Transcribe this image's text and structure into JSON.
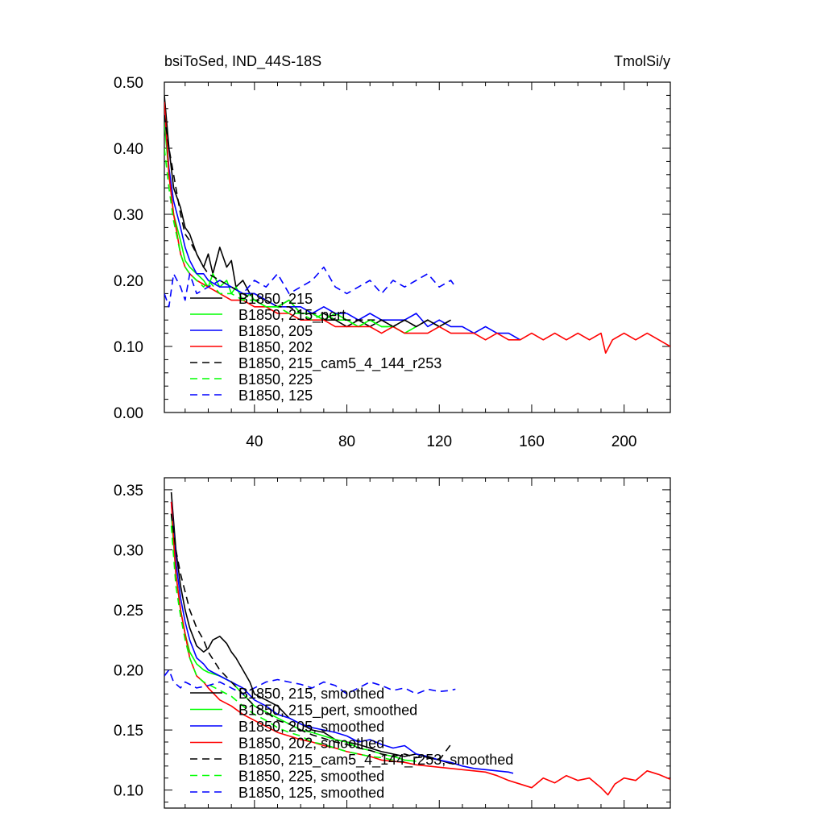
{
  "chart_data": [
    {
      "type": "line",
      "title_left": "bsiToSed, IND_44S-18S",
      "title_right": "TmolSi/y",
      "xlim": [
        1,
        220
      ],
      "ylim": [
        0,
        0.5
      ],
      "xticks": [
        40,
        80,
        120,
        160,
        200
      ],
      "yticks": [
        0,
        0.1,
        0.2,
        0.3,
        0.4,
        0.5
      ],
      "ytick_labels": [
        "0.00",
        "0.10",
        "0.20",
        "0.30",
        "0.40",
        "0.50"
      ],
      "grid": false,
      "legend_position": "lower-left",
      "series": [
        {
          "name": "B1850, 215",
          "color": "#000000",
          "dash": "solid",
          "x": [
            1,
            3,
            5,
            8,
            10,
            12,
            15,
            18,
            20,
            22,
            25,
            28,
            30,
            32,
            35,
            38,
            40,
            45,
            50,
            55,
            60,
            65,
            70,
            75,
            80,
            85,
            90,
            95,
            100,
            105,
            110,
            115,
            120,
            125
          ],
          "y": [
            0.48,
            0.4,
            0.34,
            0.31,
            0.28,
            0.27,
            0.24,
            0.22,
            0.24,
            0.21,
            0.25,
            0.22,
            0.23,
            0.19,
            0.2,
            0.18,
            0.18,
            0.17,
            0.16,
            0.17,
            0.15,
            0.15,
            0.14,
            0.14,
            0.13,
            0.14,
            0.13,
            0.14,
            0.13,
            0.14,
            0.13,
            0.14,
            0.13,
            0.14
          ]
        },
        {
          "name": "B1850, 215_pert",
          "color": "#00ff00",
          "dash": "solid",
          "x": [
            1,
            3,
            5,
            8,
            10,
            12,
            15,
            18,
            20,
            22,
            25,
            28,
            30,
            32,
            35,
            38,
            40,
            45,
            50,
            55,
            60,
            65,
            70,
            75,
            80,
            85,
            90,
            95,
            100,
            105,
            110
          ],
          "y": [
            0.44,
            0.36,
            0.3,
            0.26,
            0.23,
            0.22,
            0.21,
            0.2,
            0.19,
            0.21,
            0.19,
            0.2,
            0.18,
            0.19,
            0.17,
            0.18,
            0.17,
            0.16,
            0.16,
            0.17,
            0.15,
            0.15,
            0.14,
            0.15,
            0.14,
            0.13,
            0.14,
            0.13,
            0.13,
            0.12,
            0.13
          ]
        },
        {
          "name": "B1850, 205",
          "color": "#0000ff",
          "dash": "solid",
          "x": [
            1,
            3,
            5,
            8,
            10,
            12,
            15,
            18,
            20,
            25,
            30,
            35,
            40,
            45,
            50,
            55,
            60,
            65,
            70,
            75,
            80,
            85,
            90,
            95,
            100,
            105,
            110,
            115,
            120,
            125,
            130,
            135,
            140,
            145,
            150,
            155
          ],
          "y": [
            0.46,
            0.37,
            0.32,
            0.28,
            0.25,
            0.23,
            0.21,
            0.21,
            0.2,
            0.19,
            0.19,
            0.18,
            0.18,
            0.17,
            0.16,
            0.16,
            0.16,
            0.15,
            0.16,
            0.15,
            0.15,
            0.14,
            0.15,
            0.14,
            0.14,
            0.14,
            0.15,
            0.13,
            0.14,
            0.13,
            0.13,
            0.12,
            0.13,
            0.12,
            0.12,
            0.11
          ]
        },
        {
          "name": "B1850, 202",
          "color": "#ff0000",
          "dash": "solid",
          "x": [
            1,
            3,
            5,
            8,
            10,
            12,
            15,
            20,
            25,
            30,
            35,
            40,
            45,
            50,
            55,
            60,
            65,
            70,
            75,
            80,
            85,
            90,
            95,
            100,
            105,
            110,
            115,
            120,
            125,
            130,
            135,
            140,
            145,
            150,
            155,
            160,
            165,
            170,
            175,
            180,
            185,
            190,
            192,
            195,
            200,
            205,
            210,
            215,
            220
          ],
          "y": [
            0.47,
            0.36,
            0.3,
            0.24,
            0.22,
            0.21,
            0.2,
            0.19,
            0.18,
            0.17,
            0.17,
            0.16,
            0.16,
            0.15,
            0.15,
            0.14,
            0.14,
            0.14,
            0.13,
            0.13,
            0.13,
            0.13,
            0.12,
            0.13,
            0.12,
            0.12,
            0.12,
            0.13,
            0.12,
            0.12,
            0.12,
            0.11,
            0.12,
            0.11,
            0.11,
            0.12,
            0.11,
            0.12,
            0.11,
            0.12,
            0.11,
            0.12,
            0.09,
            0.11,
            0.12,
            0.11,
            0.12,
            0.11,
            0.1
          ]
        },
        {
          "name": "B1850, 215_cam5_4_144_r253",
          "color": "#000000",
          "dash": "dashed",
          "x": [
            1,
            3,
            5,
            8,
            10,
            12,
            15,
            18,
            20,
            25,
            30,
            35,
            40,
            45,
            50,
            55,
            60,
            65,
            70,
            75,
            80,
            85,
            90,
            95,
            100,
            105,
            110,
            115,
            120,
            125
          ],
          "y": [
            0.45,
            0.4,
            0.36,
            0.3,
            0.27,
            0.26,
            0.24,
            0.22,
            0.21,
            0.2,
            0.19,
            0.18,
            0.17,
            0.17,
            0.16,
            0.16,
            0.15,
            0.15,
            0.15,
            0.14,
            0.14,
            0.14,
            0.14,
            0.14,
            0.13,
            0.14,
            0.13,
            0.14,
            0.13,
            0.14
          ]
        },
        {
          "name": "B1850, 225",
          "color": "#00ff00",
          "dash": "dashed",
          "x": [
            1,
            3,
            5,
            8,
            10,
            12,
            15,
            18,
            20,
            25,
            30,
            35,
            40,
            45,
            50,
            55,
            60,
            65,
            70,
            75,
            80,
            85,
            90,
            95,
            100
          ],
          "y": [
            0.4,
            0.34,
            0.29,
            0.24,
            0.22,
            0.21,
            0.2,
            0.19,
            0.2,
            0.18,
            0.18,
            0.17,
            0.17,
            0.16,
            0.16,
            0.15,
            0.15,
            0.14,
            0.15,
            0.14,
            0.14,
            0.13,
            0.14,
            0.13,
            0.13
          ]
        },
        {
          "name": "B1850, 125",
          "color": "#0000ff",
          "dash": "dashed",
          "x": [
            1,
            3,
            5,
            8,
            10,
            12,
            15,
            20,
            25,
            30,
            35,
            40,
            45,
            50,
            55,
            60,
            65,
            70,
            75,
            80,
            85,
            90,
            95,
            100,
            105,
            110,
            115,
            120,
            125,
            127
          ],
          "y": [
            0.18,
            0.16,
            0.21,
            0.19,
            0.17,
            0.21,
            0.18,
            0.19,
            0.2,
            0.19,
            0.18,
            0.2,
            0.19,
            0.21,
            0.18,
            0.19,
            0.2,
            0.22,
            0.19,
            0.18,
            0.19,
            0.2,
            0.18,
            0.2,
            0.19,
            0.2,
            0.21,
            0.19,
            0.2,
            0.19
          ]
        }
      ]
    },
    {
      "type": "line",
      "xlim": [
        1,
        220
      ],
      "ylim": [
        0.085,
        0.36
      ],
      "xticks": [
        40,
        80,
        120,
        160,
        200
      ],
      "yticks": [
        0.1,
        0.15,
        0.2,
        0.25,
        0.3,
        0.35
      ],
      "ytick_labels": [
        "0.10",
        "0.15",
        "0.20",
        "0.25",
        "0.30",
        "0.35"
      ],
      "grid": false,
      "legend_position": "lower-left",
      "series": [
        {
          "name": "B1850, 215, smoothed",
          "color": "#000000",
          "dash": "solid",
          "x": [
            4,
            6,
            8,
            10,
            12,
            15,
            18,
            20,
            22,
            25,
            28,
            30,
            32,
            35,
            38,
            40,
            45,
            50,
            55,
            60,
            65,
            70,
            75,
            80,
            85,
            90,
            95,
            100,
            105,
            110,
            115,
            120,
            125
          ],
          "y": [
            0.348,
            0.3,
            0.27,
            0.25,
            0.235,
            0.22,
            0.215,
            0.218,
            0.225,
            0.228,
            0.222,
            0.215,
            0.21,
            0.2,
            0.19,
            0.18,
            0.175,
            0.17,
            0.16,
            0.155,
            0.15,
            0.148,
            0.142,
            0.14,
            0.138,
            0.135,
            0.132,
            0.13,
            0.128,
            0.13,
            0.127,
            0.125,
            0.122
          ]
        },
        {
          "name": "B1850, 215_pert, smoothed",
          "color": "#00ff00",
          "dash": "solid",
          "x": [
            4,
            6,
            8,
            10,
            12,
            15,
            18,
            20,
            25,
            30,
            35,
            40,
            45,
            50,
            55,
            60,
            65,
            70,
            75,
            80,
            85,
            90,
            95,
            100,
            105,
            110
          ],
          "y": [
            0.33,
            0.28,
            0.25,
            0.23,
            0.215,
            0.205,
            0.2,
            0.198,
            0.195,
            0.19,
            0.18,
            0.17,
            0.165,
            0.16,
            0.155,
            0.15,
            0.148,
            0.145,
            0.142,
            0.14,
            0.135,
            0.133,
            0.13,
            0.128,
            0.125,
            0.124
          ]
        },
        {
          "name": "B1850, 205, smoothed",
          "color": "#0000ff",
          "dash": "solid",
          "x": [
            4,
            6,
            8,
            10,
            12,
            15,
            18,
            20,
            25,
            30,
            35,
            40,
            45,
            50,
            55,
            60,
            65,
            70,
            75,
            80,
            85,
            90,
            95,
            100,
            105,
            110,
            115,
            120,
            125,
            130,
            135,
            140,
            145,
            150,
            152
          ],
          "y": [
            0.34,
            0.29,
            0.26,
            0.24,
            0.225,
            0.21,
            0.205,
            0.2,
            0.195,
            0.19,
            0.185,
            0.175,
            0.17,
            0.163,
            0.16,
            0.155,
            0.152,
            0.15,
            0.148,
            0.145,
            0.14,
            0.142,
            0.138,
            0.135,
            0.137,
            0.13,
            0.128,
            0.125,
            0.123,
            0.12,
            0.118,
            0.117,
            0.116,
            0.115,
            0.114
          ]
        },
        {
          "name": "B1850, 202, smoothed",
          "color": "#ff0000",
          "dash": "solid",
          "x": [
            4,
            6,
            8,
            10,
            12,
            15,
            18,
            20,
            25,
            30,
            35,
            40,
            45,
            50,
            55,
            60,
            65,
            70,
            75,
            80,
            85,
            90,
            95,
            100,
            105,
            110,
            115,
            120,
            125,
            130,
            135,
            140,
            145,
            150,
            155,
            160,
            165,
            170,
            175,
            180,
            185,
            190,
            193,
            196,
            200,
            205,
            210,
            215,
            220
          ],
          "y": [
            0.34,
            0.28,
            0.25,
            0.23,
            0.21,
            0.195,
            0.19,
            0.185,
            0.175,
            0.17,
            0.163,
            0.158,
            0.153,
            0.148,
            0.145,
            0.142,
            0.14,
            0.137,
            0.135,
            0.132,
            0.13,
            0.128,
            0.125,
            0.124,
            0.123,
            0.121,
            0.12,
            0.119,
            0.118,
            0.117,
            0.116,
            0.115,
            0.112,
            0.108,
            0.105,
            0.102,
            0.11,
            0.106,
            0.112,
            0.108,
            0.11,
            0.102,
            0.096,
            0.105,
            0.11,
            0.108,
            0.116,
            0.113,
            0.109
          ]
        },
        {
          "name": "B1850, 215_cam5_4_144_r253, smoothed",
          "color": "#000000",
          "dash": "dashed",
          "x": [
            4,
            6,
            8,
            10,
            12,
            15,
            18,
            20,
            25,
            30,
            35,
            40,
            45,
            50,
            55,
            60,
            65,
            70,
            75,
            80,
            85,
            90,
            95,
            100,
            105,
            110,
            115,
            120,
            125
          ],
          "y": [
            0.33,
            0.3,
            0.28,
            0.265,
            0.25,
            0.235,
            0.225,
            0.215,
            0.2,
            0.19,
            0.18,
            0.17,
            0.165,
            0.158,
            0.155,
            0.15,
            0.146,
            0.143,
            0.14,
            0.138,
            0.135,
            0.133,
            0.13,
            0.128,
            0.13,
            0.127,
            0.128,
            0.125,
            0.138
          ]
        },
        {
          "name": "B1850, 225, smoothed",
          "color": "#00ff00",
          "dash": "dashed",
          "x": [
            4,
            6,
            8,
            10,
            12,
            15,
            18,
            20,
            25,
            30,
            35,
            40,
            45,
            50,
            55,
            60,
            65,
            70,
            75,
            80,
            85,
            90,
            95,
            100
          ],
          "y": [
            0.32,
            0.27,
            0.245,
            0.225,
            0.21,
            0.195,
            0.19,
            0.188,
            0.183,
            0.178,
            0.17,
            0.163,
            0.158,
            0.152,
            0.148,
            0.145,
            0.14,
            0.138,
            0.135,
            0.132,
            0.13,
            0.128,
            0.127,
            0.125
          ]
        },
        {
          "name": "B1850, 125, smoothed",
          "color": "#0000ff",
          "dash": "dashed",
          "x": [
            1,
            3,
            5,
            8,
            10,
            12,
            15,
            20,
            25,
            30,
            35,
            40,
            45,
            50,
            55,
            60,
            65,
            70,
            75,
            80,
            85,
            90,
            95,
            100,
            105,
            110,
            115,
            120,
            125,
            127
          ],
          "y": [
            0.195,
            0.2,
            0.19,
            0.185,
            0.19,
            0.188,
            0.185,
            0.187,
            0.19,
            0.185,
            0.18,
            0.185,
            0.19,
            0.192,
            0.19,
            0.188,
            0.185,
            0.19,
            0.187,
            0.18,
            0.185,
            0.19,
            0.187,
            0.183,
            0.185,
            0.18,
            0.184,
            0.182,
            0.183,
            0.184
          ]
        }
      ]
    }
  ]
}
